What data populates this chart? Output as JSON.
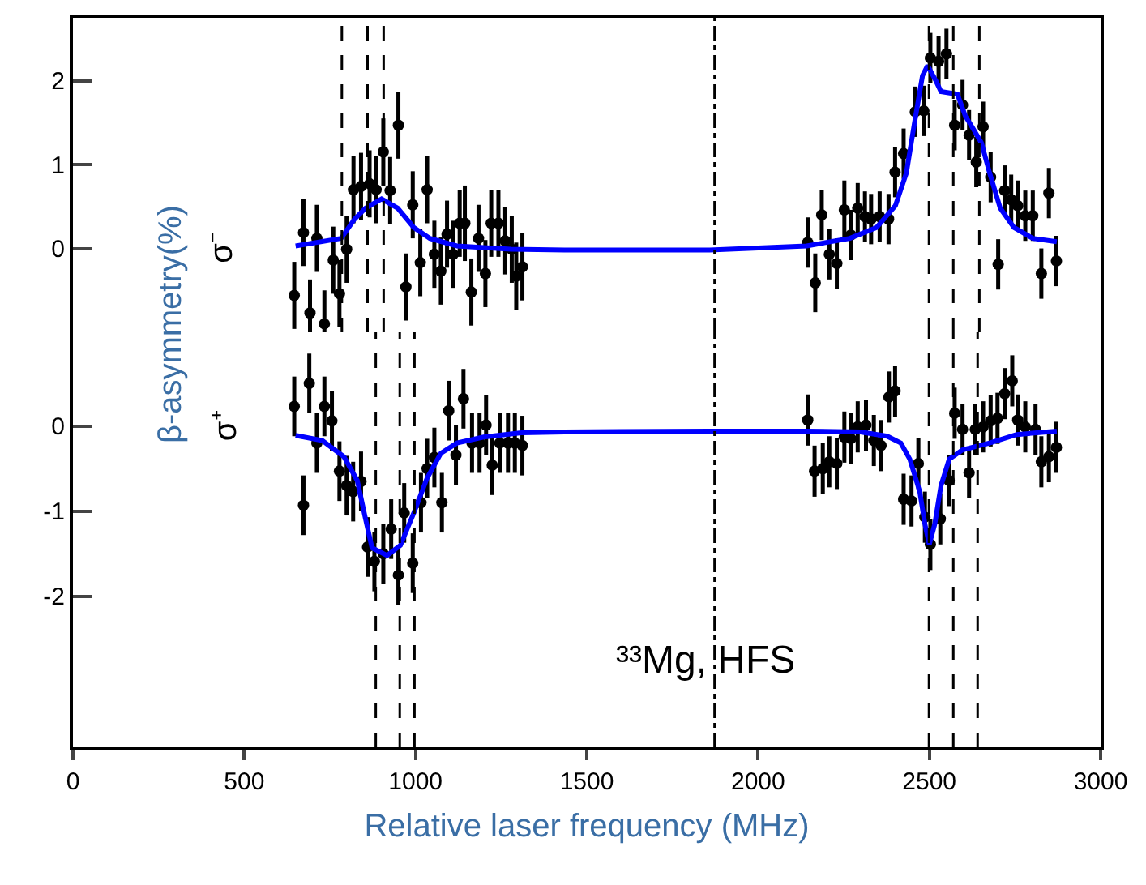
{
  "chart_data": [
    {
      "type": "scatter",
      "ylabel": "β-asymmetry(%)",
      "annotations": [
        "σ⁻"
      ],
      "xlim": [
        0,
        3000
      ],
      "ylim": [
        -1.0,
        2.75
      ],
      "yticks": [
        0,
        1,
        2
      ],
      "tick_labels": "y",
      "ref_lines": [
        {
          "axis": "x",
          "value": 785,
          "line_style": "dashed"
        },
        {
          "axis": "x",
          "value": 860,
          "line_style": "dashed"
        },
        {
          "axis": "x",
          "value": 907,
          "line_style": "dashed"
        },
        {
          "axis": "x",
          "value": 1873,
          "line_style": "dashdot"
        },
        {
          "axis": "x",
          "value": 2499,
          "line_style": "dashed"
        },
        {
          "axis": "x",
          "value": 2570,
          "line_style": "dashed"
        },
        {
          "axis": "x",
          "value": 2646,
          "line_style": "dashed"
        }
      ],
      "series": [
        {
          "marker": "circle",
          "color": "#000000",
          "x": [
            646,
            673,
            692,
            712,
            734,
            760,
            778,
            799,
            819,
            841,
            866,
            885,
            906,
            926,
            950,
            972,
            992,
            1014,
            1034,
            1055,
            1074,
            1092,
            1110,
            1129,
            1144,
            1163,
            1184,
            1204,
            1221,
            1242,
            1262,
            1281,
            1294,
            1312,
            2145,
            2167,
            2186,
            2208,
            2230,
            2252,
            2271,
            2291,
            2312,
            2330,
            2355,
            2381,
            2400,
            2425,
            2459,
            2484,
            2503,
            2527,
            2550,
            2574,
            2597,
            2616,
            2637,
            2657,
            2679,
            2701,
            2720,
            2739,
            2758,
            2780,
            2802,
            2827,
            2849,
            2871
          ],
          "values": [
            -0.56,
            0.19,
            -0.77,
            0.12,
            -0.9,
            -0.14,
            -0.54,
            -0.01,
            0.7,
            0.74,
            0.77,
            0.7,
            1.15,
            0.69,
            1.47,
            -0.46,
            0.52,
            -0.17,
            0.7,
            -0.07,
            -0.27,
            0.17,
            -0.07,
            0.3,
            0.3,
            -0.52,
            0.12,
            -0.3,
            0.3,
            0.3,
            0.09,
            -0.01,
            -0.33,
            -0.22,
            0.07,
            -0.41,
            0.4,
            -0.07,
            -0.18,
            0.46,
            0.16,
            0.48,
            0.38,
            0.35,
            0.38,
            0.35,
            0.91,
            1.13,
            1.63,
            1.64,
            2.27,
            2.23,
            2.32,
            1.47,
            1.71,
            1.35,
            1.03,
            1.45,
            0.85,
            -0.19,
            0.69,
            0.58,
            0.51,
            0.39,
            0.39,
            -0.3,
            0.66,
            -0.15
          ],
          "errors": [
            0.4,
            0.4,
            0.4,
            0.4,
            0.4,
            0.4,
            0.4,
            0.4,
            0.4,
            0.4,
            0.4,
            0.4,
            0.4,
            0.4,
            0.4,
            0.4,
            0.4,
            0.4,
            0.4,
            0.4,
            0.4,
            0.4,
            0.4,
            0.4,
            0.45,
            0.4,
            0.4,
            0.4,
            0.4,
            0.4,
            0.4,
            0.4,
            0.4,
            0.4,
            0.3,
            0.35,
            0.3,
            0.3,
            0.3,
            0.35,
            0.3,
            0.3,
            0.3,
            0.3,
            0.3,
            0.3,
            0.3,
            0.3,
            0.3,
            0.3,
            0.3,
            0.3,
            0.3,
            0.3,
            0.3,
            0.3,
            0.3,
            0.3,
            0.3,
            0.3,
            0.3,
            0.3,
            0.3,
            0.3,
            0.3,
            0.3,
            0.3,
            0.3
          ]
        },
        {
          "type": "line",
          "color": "#0000ff",
          "line_style": "solid",
          "x": [
            650,
            783,
            822,
            854,
            901,
            948,
            995,
            1042,
            1121,
            1278,
            1435,
            1859,
            2142,
            2268,
            2346,
            2401,
            2433,
            2456,
            2480,
            2495,
            2519,
            2534,
            2582,
            2605,
            2629,
            2652,
            2676,
            2707,
            2747,
            2802,
            2872
          ],
          "values": [
            0.03,
            0.12,
            0.35,
            0.48,
            0.59,
            0.48,
            0.25,
            0.12,
            0.03,
            -0.01,
            -0.02,
            -0.02,
            0.03,
            0.12,
            0.25,
            0.51,
            0.9,
            1.48,
            2.06,
            2.18,
            2.0,
            1.87,
            1.84,
            1.58,
            1.42,
            1.26,
            0.9,
            0.48,
            0.25,
            0.12,
            0.08
          ]
        }
      ]
    },
    {
      "type": "scatter",
      "xlabel": "Relative laser frequency (MHz)",
      "annotations": [
        "σ⁺",
        "³³Mg, HFS"
      ],
      "xlim": [
        0,
        3000
      ],
      "xticks": [
        0,
        500,
        1000,
        1500,
        2000,
        2500,
        3000
      ],
      "ylim": [
        -3.77,
        1.1
      ],
      "yticks": [
        0,
        -1,
        -2
      ],
      "ref_lines": [
        {
          "axis": "x",
          "value": 884,
          "line_style": "dashed"
        },
        {
          "axis": "x",
          "value": 954,
          "line_style": "dashed"
        },
        {
          "axis": "x",
          "value": 997,
          "line_style": "dashed"
        },
        {
          "axis": "x",
          "value": 1873,
          "line_style": "dashdot"
        },
        {
          "axis": "x",
          "value": 2499,
          "line_style": "dashed"
        },
        {
          "axis": "x",
          "value": 2570,
          "line_style": "dashed"
        },
        {
          "axis": "x",
          "value": 2641,
          "line_style": "dashed"
        }
      ],
      "series": [
        {
          "marker": "circle",
          "color": "#000000",
          "x": [
            646,
            673,
            690,
            712,
            734,
            756,
            778,
            799,
            818,
            841,
            860,
            880,
            906,
            929,
            950,
            967,
            992,
            1016,
            1034,
            1055,
            1077,
            1097,
            1118,
            1140,
            1165,
            1187,
            1206,
            1224,
            1246,
            1270,
            1290,
            1312,
            2145,
            2165,
            2189,
            2208,
            2230,
            2252,
            2271,
            2291,
            2315,
            2338,
            2359,
            2382,
            2400,
            2425,
            2448,
            2468,
            2487,
            2503,
            2532,
            2558,
            2574,
            2597,
            2616,
            2634,
            2657,
            2679,
            2699,
            2720,
            2742,
            2758,
            2780,
            2810,
            2827,
            2849,
            2871
          ],
          "values": [
            0.23,
            -0.93,
            0.5,
            -0.2,
            0.23,
            0.06,
            -0.53,
            -0.7,
            -0.77,
            -0.65,
            -1.42,
            -1.59,
            -1.5,
            -1.21,
            -1.75,
            -1.02,
            -1.61,
            -0.9,
            -0.5,
            -0.37,
            -0.9,
            0.18,
            -0.34,
            0.32,
            -0.2,
            -0.2,
            0.01,
            -0.46,
            -0.2,
            -0.2,
            -0.2,
            -0.23,
            0.07,
            -0.53,
            -0.5,
            -0.42,
            -0.44,
            -0.13,
            -0.15,
            -0.01,
            0.01,
            -0.17,
            -0.23,
            0.34,
            0.41,
            -0.86,
            -0.88,
            -0.44,
            -1.07,
            -1.39,
            -1.09,
            -0.64,
            0.15,
            -0.04,
            -0.55,
            -0.04,
            -0.01,
            0.06,
            0.09,
            0.38,
            0.53,
            0.07,
            -0.01,
            -0.04,
            -0.42,
            -0.36,
            -0.25
          ],
          "errors": [
            0.35,
            0.35,
            0.35,
            0.35,
            0.35,
            0.35,
            0.35,
            0.35,
            0.35,
            0.35,
            0.35,
            0.35,
            0.35,
            0.35,
            0.35,
            0.35,
            0.35,
            0.35,
            0.35,
            0.35,
            0.35,
            0.35,
            0.35,
            0.35,
            0.35,
            0.35,
            0.35,
            0.35,
            0.35,
            0.35,
            0.35,
            0.35,
            0.3,
            0.3,
            0.3,
            0.3,
            0.3,
            0.3,
            0.3,
            0.3,
            0.3,
            0.3,
            0.3,
            0.3,
            0.3,
            0.3,
            0.3,
            0.3,
            0.3,
            0.3,
            0.3,
            0.3,
            0.3,
            0.3,
            0.3,
            0.3,
            0.3,
            0.3,
            0.3,
            0.3,
            0.3,
            0.3,
            0.3,
            0.3,
            0.3,
            0.3,
            0.3
          ]
        },
        {
          "type": "line",
          "color": "#0000ff",
          "line_style": "solid",
          "x": [
            650,
            728,
            791,
            830,
            854,
            873,
            917,
            956,
            995,
            1034,
            1074,
            1121,
            1199,
            1309,
            1435,
            1859,
            2142,
            2299,
            2377,
            2417,
            2443,
            2472,
            2487,
            2500,
            2516,
            2534,
            2558,
            2597,
            2676,
            2755,
            2872
          ],
          "values": [
            -0.11,
            -0.17,
            -0.36,
            -0.64,
            -1.09,
            -1.43,
            -1.52,
            -1.4,
            -1.02,
            -0.61,
            -0.32,
            -0.2,
            -0.13,
            -0.08,
            -0.07,
            -0.06,
            -0.06,
            -0.07,
            -0.12,
            -0.2,
            -0.39,
            -0.77,
            -1.15,
            -1.39,
            -1.15,
            -0.7,
            -0.39,
            -0.28,
            -0.2,
            -0.1,
            -0.06
          ]
        }
      ]
    }
  ]
}
